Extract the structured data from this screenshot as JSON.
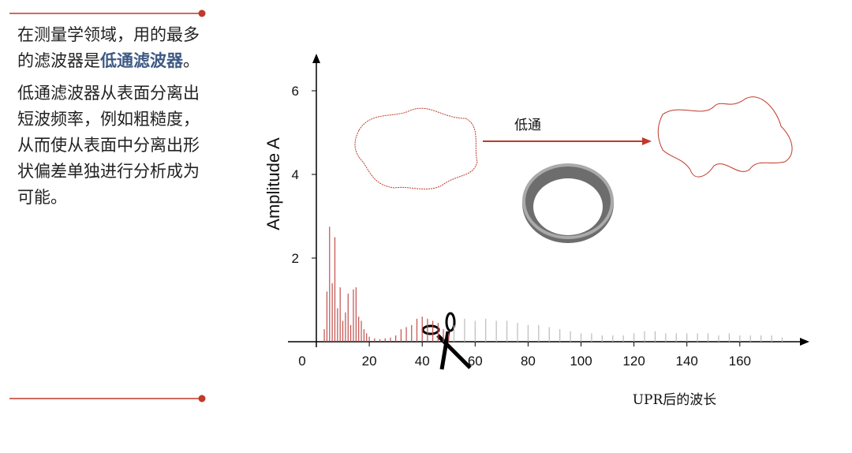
{
  "text": {
    "p1": [
      "在测量学领域，用的最多的滤波器是",
      "低通滤波器",
      "。"
    ],
    "p2": "低通滤波器从表面分离出短波频率，例如粗糙度，从而使从表面中分离出形状偏差单独进行分析成为可能。"
  },
  "chart_data": {
    "type": "bar",
    "ylabel": "Amplitude A",
    "xlabel": "UPR后的波长",
    "annotation": "低通",
    "xlim": [
      0,
      185
    ],
    "xticks": [
      0,
      20,
      40,
      60,
      80,
      100,
      120,
      140,
      160
    ],
    "ylim": [
      0,
      6.75
    ],
    "yticks": [
      2,
      4,
      6
    ],
    "series": [
      {
        "color": "#c0504d",
        "x": [
          3,
          4,
          5,
          6,
          7,
          8,
          9,
          10,
          11,
          12,
          13,
          14,
          15,
          16,
          17,
          18,
          19,
          20,
          22,
          24,
          26,
          28,
          30,
          32,
          34,
          36,
          38,
          40,
          42,
          44,
          46,
          48,
          50
        ],
        "values": [
          0.3,
          1.2,
          2.75,
          1.4,
          2.5,
          0.8,
          1.3,
          0.5,
          0.7,
          1.15,
          0.4,
          1.25,
          1.3,
          0.6,
          0.5,
          0.3,
          0.2,
          0.12,
          0.08,
          0.06,
          0.08,
          0.1,
          0.15,
          0.3,
          0.35,
          0.4,
          0.55,
          0.6,
          0.55,
          0.5,
          0.45,
          0.3,
          0.2
        ]
      },
      {
        "color": "#bbbbbb",
        "x": [
          52,
          56,
          60,
          64,
          68,
          72,
          76,
          80,
          84,
          88,
          92,
          96,
          100,
          104,
          108,
          112,
          116,
          120,
          124,
          128,
          132,
          136,
          140,
          144,
          148,
          152,
          156,
          160,
          164,
          168,
          172,
          176
        ],
        "values": [
          0.4,
          0.55,
          0.5,
          0.55,
          0.5,
          0.5,
          0.45,
          0.4,
          0.4,
          0.35,
          0.3,
          0.25,
          0.2,
          0.2,
          0.15,
          0.15,
          0.15,
          0.2,
          0.25,
          0.25,
          0.2,
          0.2,
          0.2,
          0.2,
          0.2,
          0.15,
          0.2,
          0.15,
          0.15,
          0.15,
          0.15,
          0.1
        ]
      }
    ]
  }
}
